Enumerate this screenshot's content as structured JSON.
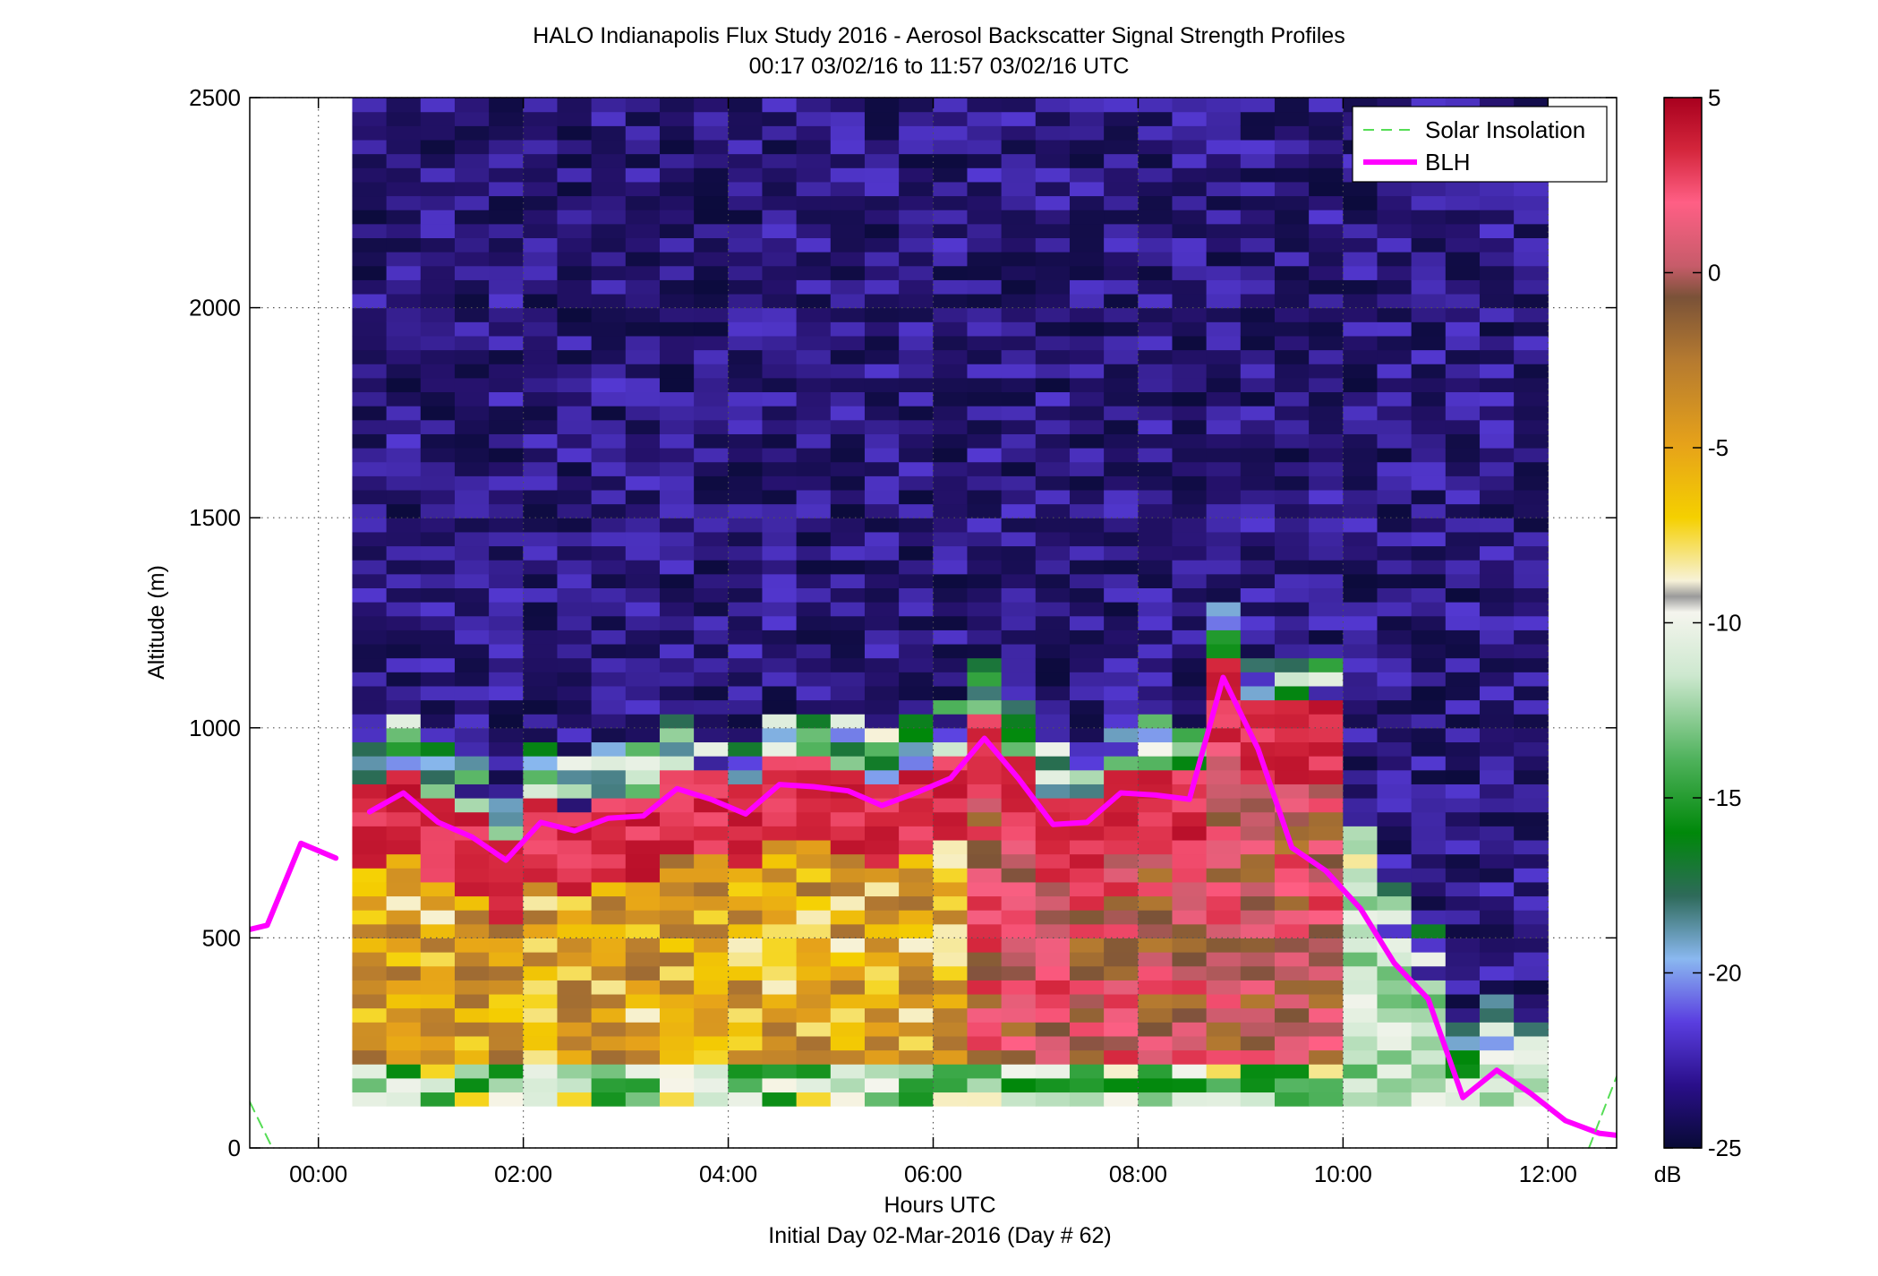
{
  "chart_data": {
    "type": "heatmap",
    "title": "HALO Indianapolis Flux Study 2016 - Aerosol Backscatter Signal Strength Profiles",
    "subtitle": "00:17 03/02/16 to 11:57 03/02/16  UTC",
    "xlabel": "Hours UTC",
    "xlabel_sub": "Initial Day 02-Mar-2016 (Day # 62)",
    "ylabel": "Altitude (m)",
    "xlim": [
      -0.67,
      12.67
    ],
    "ylim": [
      0,
      2500
    ],
    "x_ticks": [
      0,
      2,
      4,
      6,
      8,
      10,
      12
    ],
    "x_tick_labels": [
      "00:00",
      "02:00",
      "04:00",
      "06:00",
      "08:00",
      "10:00",
      "12:00"
    ],
    "y_ticks": [
      0,
      500,
      1000,
      1500,
      2000,
      2500
    ],
    "y_tick_labels": [
      "0",
      "500",
      "1000",
      "1500",
      "2000",
      "2500"
    ],
    "grid": true,
    "colorbar": {
      "range": [
        -25,
        5
      ],
      "ticks": [
        5,
        0,
        -5,
        -10,
        -15,
        -20,
        -25
      ],
      "tick_labels": [
        "5",
        "0",
        "-5",
        "-10",
        "-15",
        "-20",
        "-25"
      ],
      "unit_label": "dB"
    },
    "legend": {
      "placement": "top-right"
    },
    "heatmap": {
      "x_start": 0.33,
      "x_end": 12.0,
      "columns": 35,
      "y_start": 100,
      "y_end": 2500,
      "rows": 72,
      "approx_description_values_dB": {
        "above_boundary_layer": -23,
        "boundary_layer_core": 3,
        "lower_mixed_layer": -6,
        "surface_clean_layer": -12
      }
    },
    "series": [
      {
        "name": "BLH",
        "color": "#ff00ff",
        "segments": [
          {
            "x": [
              -0.67,
              -0.5,
              -0.17,
              0.17
            ],
            "y": [
              520,
              530,
              725,
              690
            ]
          },
          {
            "x": [
              0.5,
              0.83,
              1.17,
              1.5,
              1.83,
              2.17,
              2.5,
              2.83,
              3.17,
              3.5,
              3.83,
              4.17,
              4.5,
              4.83,
              5.17,
              5.5,
              5.83,
              6.17,
              6.5,
              6.83,
              7.17,
              7.5,
              7.83,
              8.17,
              8.5,
              8.83,
              9.17,
              9.5,
              9.83,
              10.17,
              10.5,
              10.83,
              11.17,
              11.5,
              11.83,
              12.17,
              12.5,
              12.67
            ],
            "y": [
              800,
              845,
              775,
              740,
              685,
              775,
              755,
              785,
              790,
              855,
              830,
              795,
              865,
              860,
              850,
              815,
              845,
              880,
              975,
              880,
              770,
              775,
              845,
              840,
              830,
              1120,
              950,
              715,
              660,
              570,
              440,
              355,
              120,
              185,
              130,
              65,
              35,
              30
            ]
          }
        ]
      },
      {
        "name": "Solar Insolation",
        "color": "#55dd55",
        "style": "dashed",
        "segments": [
          {
            "x": [
              -0.67,
              -0.45
            ],
            "y": [
              110,
              0
            ]
          },
          {
            "x": [
              12.4,
              12.67
            ],
            "y": [
              0,
              170
            ]
          }
        ]
      }
    ]
  }
}
